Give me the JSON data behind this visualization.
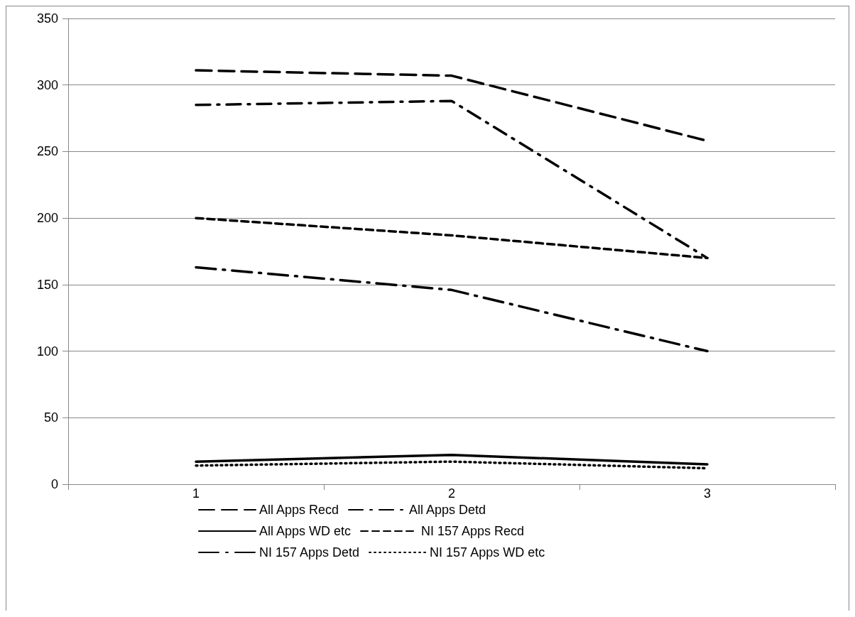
{
  "chart_data": {
    "type": "line",
    "categories": [
      "1",
      "2",
      "3"
    ],
    "ylim": [
      0,
      350
    ],
    "yticks": [
      0,
      50,
      100,
      150,
      200,
      250,
      300,
      350
    ],
    "grid": "y",
    "legend": "bottom",
    "marker": "none",
    "series": [
      {
        "name": "All Apps Recd",
        "color": "#000000",
        "line_style": "long_dashed",
        "values": [
          311,
          307,
          258
        ]
      },
      {
        "name": "All Apps Detd",
        "color": "#000000",
        "line_style": "dash_dot",
        "values": [
          285,
          288,
          170
        ]
      },
      {
        "name": "All Apps WD etc",
        "color": "#000000",
        "line_style": "solid",
        "values": [
          17,
          22,
          15
        ]
      },
      {
        "name": "NI 157 Apps Recd",
        "color": "#000000",
        "line_style": "dashed",
        "values": [
          200,
          187,
          170
        ]
      },
      {
        "name": "NI 157 Apps Detd",
        "color": "#000000",
        "line_style": "long_dash_dot",
        "values": [
          163,
          146,
          100
        ]
      },
      {
        "name": "NI 157 Apps WD etc",
        "color": "#000000",
        "line_style": "dotted",
        "values": [
          14,
          17,
          12
        ]
      }
    ]
  }
}
